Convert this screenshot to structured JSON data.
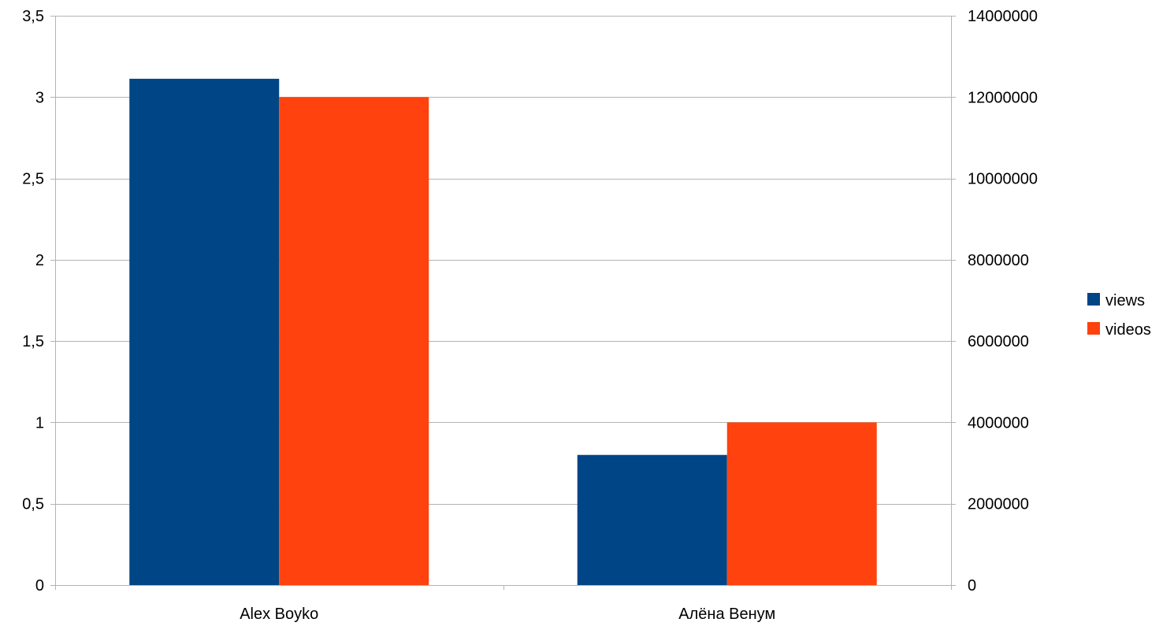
{
  "chart_data": {
    "type": "bar",
    "categories": [
      "Alex Boyko",
      "Алёна Венум"
    ],
    "series": [
      {
        "name": "views",
        "axis": "right",
        "values": [
          12450000,
          3200000
        ],
        "color": "#004586"
      },
      {
        "name": "videos",
        "axis": "left",
        "values": [
          3,
          1
        ],
        "color": "#ff420e"
      }
    ],
    "y_left": {
      "ylim": [
        0,
        3.5
      ],
      "ticks": [
        0,
        0.5,
        1,
        1.5,
        2,
        2.5,
        3,
        3.5
      ],
      "tick_labels": [
        "0",
        "0,5",
        "1",
        "1,5",
        "2",
        "2,5",
        "3",
        "3,5"
      ]
    },
    "y_right": {
      "ylim": [
        0,
        14000000
      ],
      "ticks": [
        0,
        2000000,
        4000000,
        6000000,
        8000000,
        10000000,
        12000000,
        14000000
      ],
      "tick_labels": [
        "0",
        "2000000",
        "4000000",
        "6000000",
        "8000000",
        "10000000",
        "12000000",
        "14000000"
      ]
    },
    "grid": true,
    "legend": {
      "position": "right",
      "entries": [
        "views",
        "videos"
      ]
    },
    "title": "",
    "xlabel": "",
    "ylabel": ""
  }
}
